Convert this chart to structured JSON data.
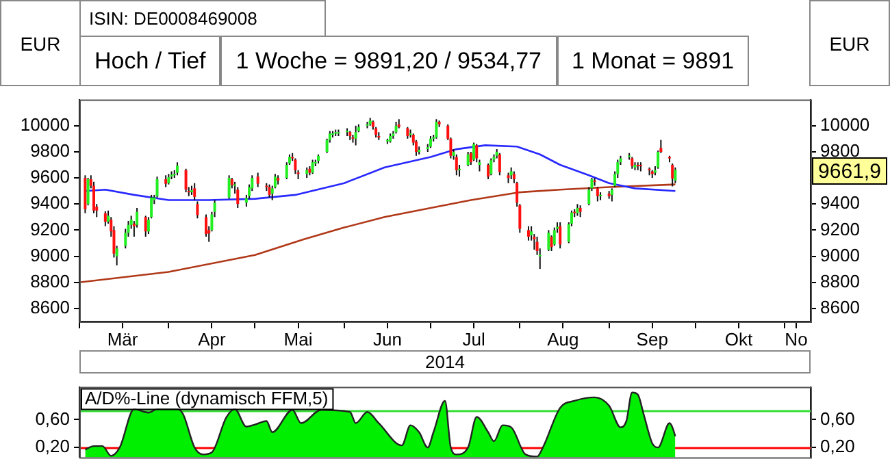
{
  "chart_data": [
    {
      "type": "candlestick",
      "ylabel": "EUR",
      "y2label": "EUR",
      "xlabel": "2014",
      "annotations": [
        "ISIN: DE0008469008",
        "Hoch / Tief",
        "1 Woche = 9891,20 / 9534,77",
        "1 Monat = 9891",
        "9661,9"
      ],
      "xlim": [
        "2014-03-01",
        "2014-11-10"
      ],
      "xticks": [
        {
          "value": "2014-03-01",
          "label": null
        },
        {
          "value": "2014-03-16",
          "label": "Mär"
        },
        {
          "value": "2014-04-01",
          "label": null
        },
        {
          "value": "2014-04-16",
          "label": "Apr"
        },
        {
          "value": "2014-05-01",
          "label": null
        },
        {
          "value": "2014-05-16",
          "label": "Mai"
        },
        {
          "value": "2014-06-01",
          "label": null
        },
        {
          "value": "2014-06-16",
          "label": "Jun"
        },
        {
          "value": "2014-07-01",
          "label": null
        },
        {
          "value": "2014-07-16",
          "label": "Jul"
        },
        {
          "value": "2014-08-01",
          "label": null
        },
        {
          "value": "2014-08-16",
          "label": "Aug"
        },
        {
          "value": "2014-09-01",
          "label": null
        },
        {
          "value": "2014-09-16",
          "label": "Sep"
        },
        {
          "value": "2014-10-01",
          "label": null
        },
        {
          "value": "2014-10-16",
          "label": "Okt"
        },
        {
          "value": "2014-11-01",
          "label": null
        },
        {
          "value": "2014-11-05",
          "label": "No"
        }
      ],
      "ylim": [
        8500,
        10200
      ],
      "yticks": [
        8600,
        8800,
        9000,
        9200,
        9400,
        9600,
        9800,
        10000
      ],
      "y2lim": [
        8500,
        10200
      ],
      "y2ticks": [
        8600,
        8800,
        9000,
        9200,
        9400,
        9800,
        10000
      ],
      "x": [
        "2014-03-03",
        "2014-03-04",
        "2014-03-05",
        "2014-03-06",
        "2014-03-07",
        "2014-03-10",
        "2014-03-11",
        "2014-03-12",
        "2014-03-13",
        "2014-03-14",
        "2014-03-17",
        "2014-03-18",
        "2014-03-19",
        "2014-03-20",
        "2014-03-21",
        "2014-03-24",
        "2014-03-25",
        "2014-03-26",
        "2014-03-27",
        "2014-03-28",
        "2014-03-31",
        "2014-04-01",
        "2014-04-02",
        "2014-04-03",
        "2014-04-04",
        "2014-04-07",
        "2014-04-08",
        "2014-04-09",
        "2014-04-10",
        "2014-04-11",
        "2014-04-14",
        "2014-04-15",
        "2014-04-16",
        "2014-04-17",
        "2014-04-22",
        "2014-04-23",
        "2014-04-24",
        "2014-04-25",
        "2014-04-28",
        "2014-04-29",
        "2014-04-30",
        "2014-05-02",
        "2014-05-05",
        "2014-05-06",
        "2014-05-07",
        "2014-05-08",
        "2014-05-09",
        "2014-05-12",
        "2014-05-13",
        "2014-05-14",
        "2014-05-15",
        "2014-05-16",
        "2014-05-19",
        "2014-05-20",
        "2014-05-21",
        "2014-05-22",
        "2014-05-23",
        "2014-05-26",
        "2014-05-27",
        "2014-05-28",
        "2014-05-29",
        "2014-05-30",
        "2014-06-02",
        "2014-06-03",
        "2014-06-04",
        "2014-06-05",
        "2014-06-06",
        "2014-06-09",
        "2014-06-10",
        "2014-06-11",
        "2014-06-12",
        "2014-06-13",
        "2014-06-16",
        "2014-06-17",
        "2014-06-18",
        "2014-06-19",
        "2014-06-20",
        "2014-06-23",
        "2014-06-24",
        "2014-06-25",
        "2014-06-26",
        "2014-06-27",
        "2014-06-30",
        "2014-07-01",
        "2014-07-02",
        "2014-07-03",
        "2014-07-04",
        "2014-07-07",
        "2014-07-08",
        "2014-07-09",
        "2014-07-10",
        "2014-07-11",
        "2014-07-14",
        "2014-07-15",
        "2014-07-16",
        "2014-07-17",
        "2014-07-18",
        "2014-07-21",
        "2014-07-22",
        "2014-07-23",
        "2014-07-24",
        "2014-07-25",
        "2014-07-28",
        "2014-07-29",
        "2014-07-30",
        "2014-07-31",
        "2014-08-01",
        "2014-08-04",
        "2014-08-05",
        "2014-08-06",
        "2014-08-07",
        "2014-08-08",
        "2014-08-11",
        "2014-08-12",
        "2014-08-13",
        "2014-08-14",
        "2014-08-15",
        "2014-08-18",
        "2014-08-19",
        "2014-08-20",
        "2014-08-21",
        "2014-08-22",
        "2014-08-25",
        "2014-08-26",
        "2014-08-27",
        "2014-08-28",
        "2014-08-29",
        "2014-09-01",
        "2014-09-02",
        "2014-09-03",
        "2014-09-04",
        "2014-09-05",
        "2014-09-08",
        "2014-09-09",
        "2014-09-10",
        "2014-09-11",
        "2014-09-12",
        "2014-09-15",
        "2014-09-16",
        "2014-09-17",
        "2014-09-18",
        "2014-09-19",
        "2014-09-22",
        "2014-09-23",
        "2014-09-24"
      ],
      "ohlc": [
        [
          9600,
          9620,
          9330,
          9360
        ],
        [
          9400,
          9600,
          9390,
          9590
        ],
        [
          9590,
          9620,
          9520,
          9540
        ],
        [
          9540,
          9570,
          9330,
          9350
        ],
        [
          9380,
          9400,
          9300,
          9350
        ],
        [
          9330,
          9345,
          9230,
          9265
        ],
        [
          9265,
          9350,
          9250,
          9310
        ],
        [
          9280,
          9300,
          9150,
          9190
        ],
        [
          9200,
          9230,
          8990,
          9020
        ],
        [
          9000,
          9080,
          8930,
          9060
        ],
        [
          9080,
          9210,
          9060,
          9180
        ],
        [
          9180,
          9270,
          9150,
          9240
        ],
        [
          9240,
          9310,
          9210,
          9280
        ],
        [
          9250,
          9270,
          9150,
          9230
        ],
        [
          9240,
          9370,
          9220,
          9340
        ],
        [
          9300,
          9310,
          9150,
          9190
        ],
        [
          9190,
          9300,
          9170,
          9280
        ],
        [
          9300,
          9470,
          9290,
          9450
        ],
        [
          9430,
          9470,
          9400,
          9450
        ],
        [
          9460,
          9610,
          9450,
          9590
        ],
        [
          9590,
          9620,
          9530,
          9555
        ],
        [
          9560,
          9630,
          9550,
          9605
        ],
        [
          9610,
          9650,
          9590,
          9625
        ],
        [
          9620,
          9660,
          9600,
          9630
        ],
        [
          9640,
          9720,
          9620,
          9695
        ],
        [
          9660,
          9670,
          9490,
          9510
        ],
        [
          9500,
          9530,
          9460,
          9490
        ],
        [
          9490,
          9540,
          9470,
          9505
        ],
        [
          9520,
          9560,
          9430,
          9455
        ],
        [
          9400,
          9420,
          9290,
          9315
        ],
        [
          9300,
          9320,
          9150,
          9170
        ],
        [
          9200,
          9230,
          9110,
          9175
        ],
        [
          9200,
          9340,
          9190,
          9320
        ],
        [
          9340,
          9430,
          9300,
          9410
        ],
        [
          9450,
          9620,
          9440,
          9600
        ],
        [
          9590,
          9600,
          9520,
          9545
        ],
        [
          9540,
          9570,
          9480,
          9545
        ],
        [
          9510,
          9530,
          9370,
          9400
        ],
        [
          9410,
          9470,
          9380,
          9445
        ],
        [
          9460,
          9550,
          9440,
          9530
        ],
        [
          9520,
          9620,
          9500,
          9600
        ],
        [
          9610,
          9640,
          9530,
          9555
        ],
        [
          9540,
          9560,
          9500,
          9530
        ],
        [
          9530,
          9550,
          9450,
          9470
        ],
        [
          9480,
          9540,
          9430,
          9520
        ],
        [
          9530,
          9630,
          9520,
          9610
        ],
        [
          9600,
          9620,
          9550,
          9580
        ],
        [
          9600,
          9720,
          9590,
          9700
        ],
        [
          9710,
          9780,
          9700,
          9760
        ],
        [
          9760,
          9790,
          9730,
          9750
        ],
        [
          9740,
          9750,
          9630,
          9660
        ],
        [
          9640,
          9660,
          9590,
          9630
        ],
        [
          9630,
          9680,
          9600,
          9660
        ],
        [
          9670,
          9690,
          9620,
          9640
        ],
        [
          9640,
          9740,
          9630,
          9720
        ],
        [
          9710,
          9740,
          9690,
          9720
        ],
        [
          9730,
          9780,
          9710,
          9770
        ],
        [
          9800,
          9900,
          9790,
          9890
        ],
        [
          9890,
          9960,
          9870,
          9940
        ],
        [
          9930,
          9960,
          9910,
          9940
        ],
        [
          9940,
          9970,
          9920,
          9940
        ],
        [
          9940,
          9970,
          9920,
          9945
        ],
        [
          9950,
          9980,
          9920,
          9950
        ],
        [
          9950,
          9960,
          9890,
          9920
        ],
        [
          9910,
          9930,
          9870,
          9900
        ],
        [
          9900,
          10000,
          9850,
          9950
        ],
        [
          9960,
          10010,
          9950,
          9990
        ],
        [
          10000,
          10030,
          9980,
          10010
        ],
        [
          10010,
          10060,
          10000,
          10040
        ],
        [
          10030,
          10040,
          9970,
          9990
        ],
        [
          9980,
          9990,
          9910,
          9930
        ],
        [
          9920,
          9950,
          9890,
          9910
        ],
        [
          9880,
          9900,
          9860,
          9880
        ],
        [
          9880,
          9940,
          9870,
          9920
        ],
        [
          9920,
          9960,
          9900,
          9940
        ],
        [
          9950,
          10030,
          9940,
          10000
        ],
        [
          10010,
          10050,
          9980,
          9990
        ],
        [
          9980,
          9990,
          9900,
          9920
        ],
        [
          9930,
          9970,
          9910,
          9940
        ],
        [
          9930,
          9940,
          9850,
          9870
        ],
        [
          9880,
          9890,
          9770,
          9800
        ],
        [
          9800,
          9840,
          9780,
          9815
        ],
        [
          9820,
          9860,
          9800,
          9835
        ],
        [
          9840,
          9920,
          9830,
          9900
        ],
        [
          9900,
          9930,
          9880,
          9900
        ],
        [
          9910,
          10050,
          9900,
          10030
        ],
        [
          10030,
          10040,
          9990,
          10010
        ],
        [
          10000,
          10010,
          9890,
          9900
        ],
        [
          9900,
          9910,
          9750,
          9770
        ],
        [
          9770,
          9820,
          9740,
          9800
        ],
        [
          9760,
          9780,
          9620,
          9660
        ],
        [
          9660,
          9700,
          9610,
          9660
        ],
        [
          9700,
          9800,
          9690,
          9780
        ],
        [
          9790,
          9800,
          9700,
          9720
        ],
        [
          9740,
          9870,
          9730,
          9860
        ],
        [
          9850,
          9860,
          9720,
          9750
        ],
        [
          9700,
          9740,
          9650,
          9720
        ],
        [
          9700,
          9710,
          9590,
          9610
        ],
        [
          9630,
          9750,
          9620,
          9735
        ],
        [
          9740,
          9780,
          9720,
          9760
        ],
        [
          9770,
          9820,
          9750,
          9800
        ],
        [
          9780,
          9790,
          9620,
          9645
        ],
        [
          9620,
          9640,
          9560,
          9600
        ],
        [
          9620,
          9680,
          9590,
          9650
        ],
        [
          9630,
          9650,
          9560,
          9590
        ],
        [
          9560,
          9570,
          9380,
          9410
        ],
        [
          9390,
          9400,
          9180,
          9210
        ],
        [
          9200,
          9230,
          9120,
          9150
        ],
        [
          9160,
          9230,
          9120,
          9190
        ],
        [
          9150,
          9170,
          9050,
          9130
        ],
        [
          9110,
          9150,
          9010,
          9040
        ],
        [
          9000,
          9060,
          8903,
          9010
        ],
        [
          9050,
          9200,
          9040,
          9180
        ],
        [
          9150,
          9160,
          9040,
          9070
        ],
        [
          9090,
          9220,
          9080,
          9200
        ],
        [
          9210,
          9260,
          9180,
          9225
        ],
        [
          9230,
          9260,
          9060,
          9090
        ],
        [
          9110,
          9260,
          9100,
          9245
        ],
        [
          9250,
          9350,
          9230,
          9335
        ],
        [
          9340,
          9360,
          9300,
          9330
        ],
        [
          9330,
          9400,
          9310,
          9370
        ],
        [
          9370,
          9390,
          9300,
          9340
        ],
        [
          9400,
          9530,
          9390,
          9510
        ],
        [
          9520,
          9600,
          9500,
          9590
        ],
        [
          9580,
          9600,
          9540,
          9570
        ],
        [
          9520,
          9530,
          9420,
          9460
        ],
        [
          9460,
          9490,
          9430,
          9470
        ],
        [
          9480,
          9500,
          9440,
          9460
        ],
        [
          9470,
          9520,
          9420,
          9510
        ],
        [
          9540,
          9650,
          9530,
          9630
        ],
        [
          9630,
          9740,
          9600,
          9720
        ],
        [
          9720,
          9770,
          9700,
          9750
        ],
        [
          9760,
          9790,
          9740,
          9760
        ],
        [
          9750,
          9760,
          9670,
          9690
        ],
        [
          9680,
          9720,
          9660,
          9700
        ],
        [
          9700,
          9720,
          9660,
          9690
        ],
        [
          9700,
          9720,
          9650,
          9690
        ],
        [
          9670,
          9680,
          9620,
          9660
        ],
        [
          9650,
          9660,
          9600,
          9630
        ],
        [
          9640,
          9690,
          9620,
          9660
        ],
        [
          9680,
          9810,
          9670,
          9800
        ],
        [
          9830,
          9891,
          9790,
          9800
        ],
        [
          9760,
          9770,
          9720,
          9750
        ],
        [
          9700,
          9710,
          9535,
          9595
        ],
        [
          9580,
          9680,
          9560,
          9662
        ]
      ],
      "series": [
        {
          "type": "line",
          "color": "#2828ff",
          "x": [
            "2014-03-03",
            "2014-03-10",
            "2014-03-20",
            "2014-04-01",
            "2014-04-15",
            "2014-05-01",
            "2014-05-15",
            "2014-06-01",
            "2014-06-15",
            "2014-07-01",
            "2014-07-10",
            "2014-07-20",
            "2014-07-31",
            "2014-08-08",
            "2014-08-15",
            "2014-08-25",
            "2014-09-01",
            "2014-09-10",
            "2014-09-24"
          ],
          "values": [
            9500,
            9510,
            9470,
            9430,
            9430,
            9440,
            9470,
            9560,
            9680,
            9760,
            9820,
            9850,
            9840,
            9780,
            9700,
            9620,
            9560,
            9520,
            9500
          ]
        },
        {
          "type": "line",
          "color": "#b03818",
          "x": [
            "2014-03-01",
            "2014-04-01",
            "2014-05-01",
            "2014-05-18",
            "2014-06-01",
            "2014-06-15",
            "2014-07-01",
            "2014-07-15",
            "2014-08-01",
            "2014-08-15",
            "2014-09-01",
            "2014-09-24"
          ],
          "values": [
            8800,
            8880,
            9010,
            9130,
            9220,
            9300,
            9370,
            9430,
            9490,
            9510,
            9530,
            9550
          ]
        }
      ]
    },
    {
      "type": "area",
      "title": "A/D%-Line (dynamisch FFM,5)",
      "tick_labels": "y",
      "xlim": [
        "2014-03-01",
        "2014-11-10"
      ],
      "ylim": [
        0.06,
        1.07
      ],
      "yticks": [
        {
          "value": 0.2,
          "label": "0,20"
        },
        {
          "value": 0.6,
          "label": "0,60"
        }
      ],
      "y2lim": [
        0.06,
        1.07
      ],
      "y2ticks": [
        {
          "value": 0.2,
          "label": "0,20"
        },
        {
          "value": 0.6,
          "label": "0,60"
        }
      ],
      "ref_lines": [
        {
          "axis": "y",
          "value": 0.2,
          "color": "#ff0000"
        },
        {
          "axis": "y",
          "value": 0.74,
          "color": "#33dd33"
        }
      ],
      "x": [
        "2014-03-03",
        "2014-03-06",
        "2014-03-09",
        "2014-03-12",
        "2014-03-15",
        "2014-03-20",
        "2014-03-25",
        "2014-03-28",
        "2014-04-04",
        "2014-04-06",
        "2014-04-10",
        "2014-04-13",
        "2014-04-16",
        "2014-04-21",
        "2014-04-24",
        "2014-04-28",
        "2014-05-01",
        "2014-05-05",
        "2014-05-07",
        "2014-05-14",
        "2014-05-17",
        "2014-05-24",
        "2014-06-03",
        "2014-06-05",
        "2014-06-09",
        "2014-06-13",
        "2014-06-21",
        "2014-06-24",
        "2014-06-27",
        "2014-06-30",
        "2014-07-02",
        "2014-07-06",
        "2014-07-08",
        "2014-07-10",
        "2014-07-14",
        "2014-07-17",
        "2014-07-21",
        "2014-07-23",
        "2014-07-26",
        "2014-07-29",
        "2014-08-03",
        "2014-08-07",
        "2014-08-09",
        "2014-08-15",
        "2014-08-20",
        "2014-08-27",
        "2014-09-01",
        "2014-09-05",
        "2014-09-07",
        "2014-09-09",
        "2014-09-11",
        "2014-09-13",
        "2014-09-16",
        "2014-09-18",
        "2014-09-22",
        "2014-09-23",
        "2014-09-24"
      ],
      "series": [
        {
          "color": "#00ee00",
          "values": [
            0.17,
            0.22,
            0.22,
            0.08,
            0.2,
            0.75,
            0.7,
            0.75,
            0.75,
            0.68,
            0.2,
            0.1,
            0.13,
            0.63,
            0.75,
            0.5,
            0.53,
            0.58,
            0.42,
            0.74,
            0.55,
            0.74,
            0.71,
            0.55,
            0.71,
            0.55,
            0.23,
            0.52,
            0.42,
            0.2,
            0.42,
            0.87,
            0.2,
            0.1,
            0.2,
            0.64,
            0.42,
            0.29,
            0.52,
            0.49,
            0.1,
            0.07,
            0.2,
            0.77,
            0.87,
            0.92,
            0.8,
            0.49,
            0.58,
            0.99,
            0.96,
            0.68,
            0.26,
            0.2,
            0.55,
            0.49,
            0.36
          ]
        }
      ]
    }
  ]
}
